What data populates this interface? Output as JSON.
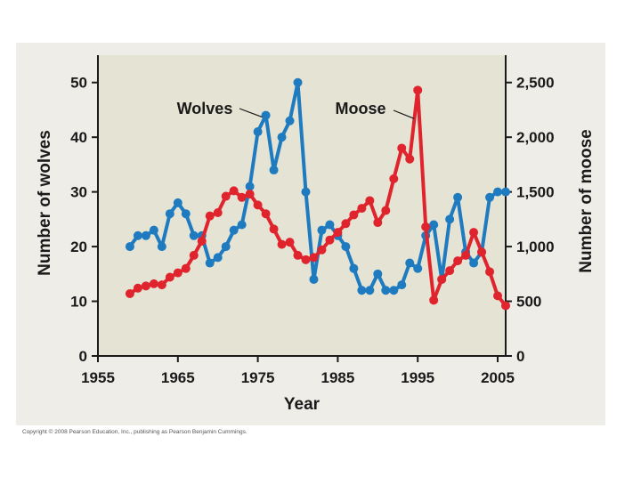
{
  "copyright": "Copyright © 2008 Pearson Education, Inc., publishing as Pearson Benjamin Cummings.",
  "colors": {
    "panel": "#e5e3d3",
    "frame": "#eeede8",
    "wolves": "#1f7bc0",
    "moose": "#e0242e",
    "axis": "#1a1a1a"
  },
  "chart_data": {
    "type": "line",
    "title": "",
    "xlabel": "Year",
    "ylabel_left": "Number of wolves",
    "ylabel_right": "Number of moose",
    "xlim": [
      1955,
      2006
    ],
    "ylim_left": [
      0,
      55
    ],
    "ylim_right": [
      0,
      2750
    ],
    "grid": false,
    "x_ticks": [
      1955,
      1965,
      1975,
      1985,
      1995,
      2005
    ],
    "x_tick_labels": [
      "1955",
      "1965",
      "1975",
      "1985",
      "1995",
      "2005"
    ],
    "y_left_ticks": [
      0,
      10,
      20,
      30,
      40,
      50
    ],
    "y_left_tick_labels": [
      "0",
      "10",
      "20",
      "30",
      "40",
      "50"
    ],
    "y_right_ticks": [
      0,
      500,
      1000,
      1500,
      2000,
      2500
    ],
    "y_right_tick_labels": [
      "0",
      "500",
      "1,000",
      "1,500",
      "2,000",
      "2,500"
    ],
    "series": [
      {
        "name": "Wolves",
        "axis": "left",
        "x": [
          1959,
          1960,
          1961,
          1962,
          1963,
          1964,
          1965,
          1966,
          1967,
          1968,
          1969,
          1970,
          1971,
          1972,
          1973,
          1974,
          1975,
          1976,
          1977,
          1978,
          1979,
          1980,
          1981,
          1982,
          1983,
          1984,
          1985,
          1986,
          1987,
          1988,
          1989,
          1990,
          1991,
          1992,
          1993,
          1994,
          1995,
          1996,
          1997,
          1998,
          1999,
          2000,
          2001,
          2002,
          2003,
          2004,
          2005,
          2006
        ],
        "values": [
          20,
          22,
          22,
          23,
          20,
          26,
          28,
          26,
          22,
          22,
          17,
          18,
          20,
          23,
          24,
          31,
          41,
          44,
          34,
          40,
          43,
          50,
          30,
          14,
          23,
          24,
          22,
          20,
          16,
          12,
          12,
          15,
          12,
          12,
          13,
          17,
          16,
          22,
          24,
          14,
          25,
          29,
          19,
          17,
          19,
          29,
          30,
          30
        ]
      },
      {
        "name": "Moose",
        "axis": "right",
        "x": [
          1959,
          1960,
          1961,
          1962,
          1963,
          1964,
          1965,
          1966,
          1967,
          1968,
          1969,
          1970,
          1971,
          1972,
          1973,
          1974,
          1975,
          1976,
          1977,
          1978,
          1979,
          1980,
          1981,
          1982,
          1983,
          1984,
          1985,
          1986,
          1987,
          1988,
          1989,
          1990,
          1991,
          1992,
          1993,
          1994,
          1995,
          1996,
          1997,
          1998,
          1999,
          2000,
          2001,
          2002,
          2003,
          2004,
          2005,
          2006
        ],
        "values": [
          570,
          620,
          640,
          660,
          650,
          720,
          760,
          800,
          920,
          1050,
          1280,
          1310,
          1460,
          1510,
          1450,
          1480,
          1380,
          1300,
          1160,
          1020,
          1040,
          920,
          880,
          900,
          970,
          1060,
          1130,
          1210,
          1290,
          1350,
          1420,
          1220,
          1330,
          1620,
          1900,
          1800,
          2430,
          1180,
          510,
          700,
          780,
          870,
          920,
          1130,
          950,
          770,
          550,
          460
        ]
      }
    ]
  }
}
